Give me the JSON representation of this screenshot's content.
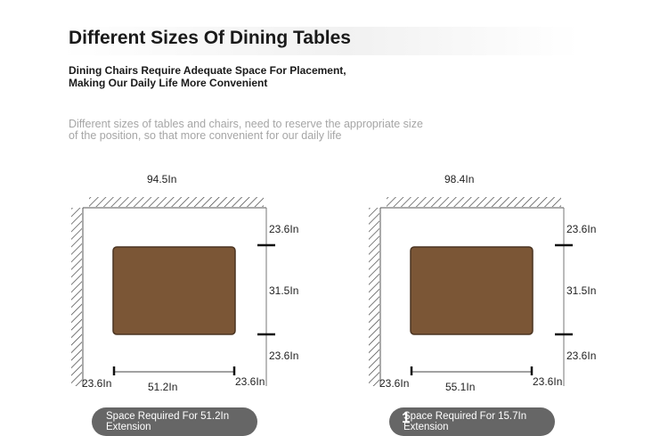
{
  "header": {
    "title": "Different Sizes Of Dining Tables",
    "subtitle_lines": [
      "Dining Chairs Require Adequate Space For Placement,",
      "Making Our Daily Life More Convenient"
    ],
    "description_lines": [
      "Different sizes of tables and chairs, need to reserve the appropriate size",
      "of the position, so that more convenient for our daily life"
    ]
  },
  "colors": {
    "table": "#7b5636",
    "table_border": "#4a3320",
    "pill": "#666666",
    "muted_text": "#a6a6a6"
  },
  "diagrams": [
    {
      "top_width": "94.5In",
      "right_top": "23.6In",
      "right_mid": "31.5In",
      "right_bottom": "23.6In",
      "bottom_left": "23.6In",
      "bottom_mid": "51.2In",
      "bottom_right": "23.6In",
      "pill_lines": [
        "Space Required For 51.2In",
        "Extension"
      ],
      "badge": ""
    },
    {
      "top_width": "98.4In",
      "right_top": "23.6In",
      "right_mid": "31.5In",
      "right_bottom": "23.6In",
      "bottom_left": "23.6In",
      "bottom_mid": "55.1In",
      "bottom_right": "23.6In",
      "pill_lines": [
        "Space Required For 15.7In",
        "Extension"
      ],
      "badge": "1"
    }
  ]
}
